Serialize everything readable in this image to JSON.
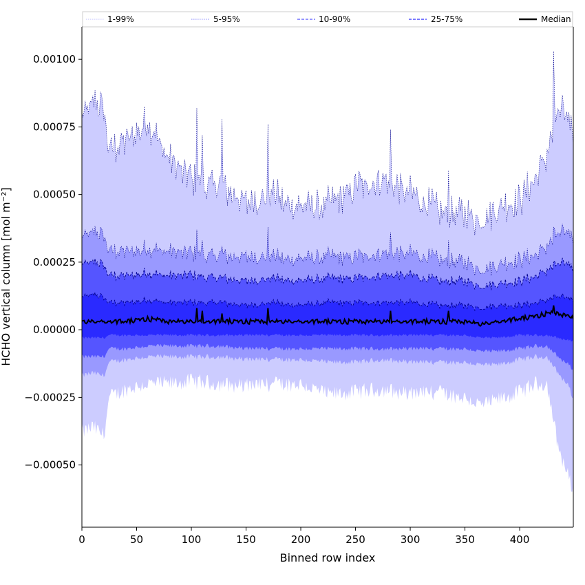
{
  "chart_data": {
    "type": "area",
    "title": "",
    "xlabel": "Binned row index",
    "ylabel": "HCHO vertical column [mol m⁻²]",
    "xlim": [
      0,
      449
    ],
    "ylim": [
      -0.00073,
      0.00112
    ],
    "xticks": [
      0,
      50,
      100,
      150,
      200,
      250,
      300,
      350,
      400
    ],
    "xtick_labels": [
      "0",
      "50",
      "100",
      "150",
      "200",
      "250",
      "300",
      "350",
      "400"
    ],
    "yticks": [
      -0.0005,
      -0.00025,
      0,
      0.00025,
      0.0005,
      0.00075,
      0.001
    ],
    "ytick_labels": [
      "−0.00050",
      "−0.00025",
      "0.00000",
      "0.00025",
      "0.00050",
      "0.00075",
      "0.00100"
    ],
    "legend_position": "top, full width",
    "series_colors": {
      "p1_99": "#ccccff",
      "p5_95": "#9999ff",
      "p10_90": "#5555ff",
      "p25_75": "#2a2aff",
      "median": "#000000",
      "outline": "#00008b"
    },
    "x_anchors": [
      0,
      10,
      20,
      25,
      40,
      60,
      80,
      100,
      125,
      150,
      175,
      200,
      225,
      250,
      275,
      300,
      325,
      350,
      365,
      380,
      400,
      415,
      425,
      435,
      445,
      449
    ],
    "bands": [
      {
        "name": "1-99%",
        "upper": [
          0.00078,
          0.00084,
          0.00082,
          0.00066,
          0.0007,
          0.00077,
          0.00063,
          0.00055,
          0.00053,
          0.00047,
          0.0005,
          0.00045,
          0.00046,
          0.00053,
          0.00055,
          0.0005,
          0.00044,
          0.00043,
          0.0004,
          0.00045,
          0.00048,
          0.00057,
          0.00065,
          0.0008,
          0.0008,
          0.00072
        ],
        "lower": [
          -0.00038,
          -0.00036,
          -0.00039,
          -0.00025,
          -0.00022,
          -0.0002,
          -0.0002,
          -0.00019,
          -0.0002,
          -0.00021,
          -0.0002,
          -0.0002,
          -0.00024,
          -0.00023,
          -0.00022,
          -0.00024,
          -0.00023,
          -0.00025,
          -0.00028,
          -0.00026,
          -0.00023,
          -0.0002,
          -0.0002,
          -0.00043,
          -0.00055,
          -0.0006
        ]
      },
      {
        "name": "5-95%",
        "upper": [
          0.00034,
          0.00036,
          0.00035,
          0.00029,
          0.00029,
          0.0003,
          0.00029,
          0.00028,
          0.00027,
          0.00027,
          0.00027,
          0.00026,
          0.00027,
          0.00027,
          0.00028,
          0.00028,
          0.00026,
          0.00025,
          0.00022,
          0.00024,
          0.00026,
          0.00028,
          0.00031,
          0.00035,
          0.00037,
          0.00033
        ],
        "lower": [
          -0.00017,
          -0.00016,
          -0.00017,
          -0.00012,
          -0.00011,
          -0.0001,
          -0.0001,
          -0.0001,
          -0.0001,
          -0.00011,
          -0.00011,
          -0.00011,
          -0.00012,
          -0.00012,
          -0.00011,
          -0.00012,
          -0.00012,
          -0.00012,
          -0.00013,
          -0.00013,
          -0.00011,
          -0.0001,
          -0.0001,
          -0.00016,
          -0.00021,
          -0.00026
        ]
      },
      {
        "name": "10-90%",
        "upper": [
          0.00024,
          0.00025,
          0.00024,
          0.0002,
          0.0002,
          0.00021,
          0.0002,
          0.0002,
          0.00019,
          0.00018,
          0.00019,
          0.00018,
          0.00019,
          0.00019,
          0.0002,
          0.0002,
          0.00018,
          0.00018,
          0.00016,
          0.00017,
          0.00018,
          0.0002,
          0.00022,
          0.00024,
          0.00025,
          0.00022
        ],
        "lower": [
          -0.0001,
          -0.0001,
          -0.0001,
          -7e-05,
          -7e-05,
          -6e-05,
          -6e-05,
          -6e-05,
          -6e-05,
          -7e-05,
          -7e-05,
          -7e-05,
          -7e-05,
          -7e-05,
          -7e-05,
          -7e-05,
          -7e-05,
          -7e-05,
          -8e-05,
          -8e-05,
          -7e-05,
          -6e-05,
          -6e-05,
          -0.0001,
          -0.00013,
          -0.00015
        ]
      },
      {
        "name": "25-75%",
        "upper": [
          0.00012,
          0.00013,
          0.00012,
          0.0001,
          0.0001,
          0.00011,
          0.0001,
          0.0001,
          0.0001,
          9e-05,
          0.0001,
          9e-05,
          0.0001,
          0.0001,
          0.0001,
          0.0001,
          9e-05,
          9e-05,
          8e-05,
          9e-05,
          9e-05,
          0.0001,
          0.00011,
          0.00012,
          0.00012,
          0.00011
        ],
        "lower": [
          -3e-05,
          -3e-05,
          -3e-05,
          -2e-05,
          -2e-05,
          -2e-05,
          -2e-05,
          -2e-05,
          -2e-05,
          -2e-05,
          -2e-05,
          -2e-05,
          -2e-05,
          -2e-05,
          -2e-05,
          -2e-05,
          -2e-05,
          -2e-05,
          -3e-05,
          -3e-05,
          -2e-05,
          -2e-05,
          -2e-05,
          -3e-05,
          -4e-05,
          -4e-05
        ]
      }
    ],
    "median": {
      "name": "Median",
      "values": [
        3e-05,
        3e-05,
        3e-05,
        3e-05,
        3e-05,
        4e-05,
        3e-05,
        3e-05,
        3e-05,
        3e-05,
        3e-05,
        3e-05,
        3e-05,
        3e-05,
        3e-05,
        3e-05,
        3e-05,
        3e-05,
        2e-05,
        3e-05,
        4e-05,
        5e-05,
        6e-05,
        6e-05,
        5e-05,
        4e-05
      ]
    },
    "spikes": [
      {
        "x": 105,
        "upper_1_99": 0.00082,
        "upper_5_95": 0.00037,
        "median": 8e-05
      },
      {
        "x": 110,
        "upper_1_99": 0.00072,
        "upper_5_95": 0.00033,
        "median": 7e-05
      },
      {
        "x": 128,
        "upper_1_99": 0.00078,
        "upper_5_95": 0.00031,
        "median": 6e-05
      },
      {
        "x": 170,
        "upper_1_99": 0.00076,
        "upper_5_95": 0.00038,
        "median": 8e-05
      },
      {
        "x": 282,
        "upper_1_99": 0.00074,
        "upper_5_95": 0.00036,
        "median": 7e-05
      },
      {
        "x": 335,
        "upper_1_99": 0.00059,
        "upper_5_95": 0.00033,
        "median": 7e-05
      },
      {
        "x": 431,
        "upper_1_99": 0.00103,
        "upper_5_95": 0.00038,
        "median": 9e-05
      }
    ],
    "legend": [
      {
        "label": "1-99%",
        "color": "#ccccff",
        "style": "dotted"
      },
      {
        "label": "5-95%",
        "color": "#9999ff",
        "style": "dotted"
      },
      {
        "label": "10-90%",
        "color": "#5555ff",
        "style": "dashed"
      },
      {
        "label": "25-75%",
        "color": "#2a2aff",
        "style": "dashed"
      },
      {
        "label": "Median",
        "color": "#000000",
        "style": "solid"
      }
    ]
  }
}
